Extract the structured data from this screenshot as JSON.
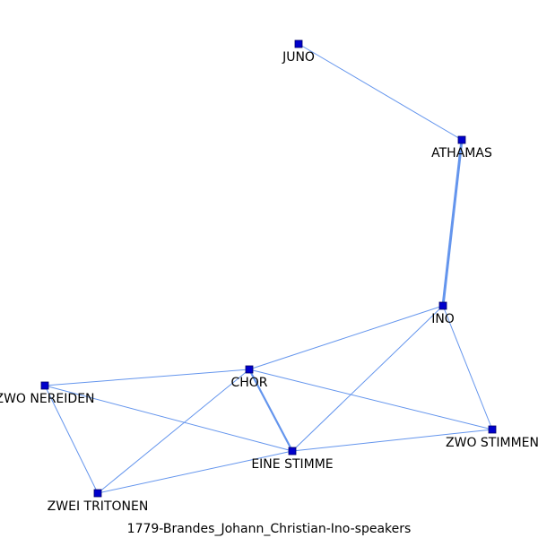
{
  "title": "1779-Brandes_Johann_Christian-Ino-speakers",
  "colors": {
    "node_fill": "#0000cc",
    "node_stroke": "#000066",
    "edge": "#6495ed",
    "label": "#000000"
  },
  "nodes": [
    {
      "id": "juno",
      "label": "JUNO"
    },
    {
      "id": "athamas",
      "label": "ATHAMAS"
    },
    {
      "id": "ino",
      "label": "INO"
    },
    {
      "id": "chor",
      "label": "CHOR"
    },
    {
      "id": "zwo_nereiden",
      "label": "ZWO NEREIDEN"
    },
    {
      "id": "eine_stimme",
      "label": "EINE STIMME"
    },
    {
      "id": "zwo_stimmen",
      "label": "ZWO STIMMEN"
    },
    {
      "id": "zwei_tritonen",
      "label": "ZWEI TRITONEN"
    }
  ],
  "edges": [
    {
      "source": "juno",
      "target": "athamas",
      "weight": 1
    },
    {
      "source": "athamas",
      "target": "ino",
      "weight": 3
    },
    {
      "source": "ino",
      "target": "chor",
      "weight": 1
    },
    {
      "source": "ino",
      "target": "eine_stimme",
      "weight": 1
    },
    {
      "source": "ino",
      "target": "zwo_stimmen",
      "weight": 1
    },
    {
      "source": "chor",
      "target": "zwo_nereiden",
      "weight": 1
    },
    {
      "source": "chor",
      "target": "eine_stimme",
      "weight": 2
    },
    {
      "source": "chor",
      "target": "zwo_stimmen",
      "weight": 1
    },
    {
      "source": "chor",
      "target": "zwei_tritonen",
      "weight": 1
    },
    {
      "source": "zwo_nereiden",
      "target": "eine_stimme",
      "weight": 1
    },
    {
      "source": "zwo_nereiden",
      "target": "zwei_tritonen",
      "weight": 1
    },
    {
      "source": "eine_stimme",
      "target": "zwo_stimmen",
      "weight": 1
    },
    {
      "source": "eine_stimme",
      "target": "zwei_tritonen",
      "weight": 1
    }
  ]
}
